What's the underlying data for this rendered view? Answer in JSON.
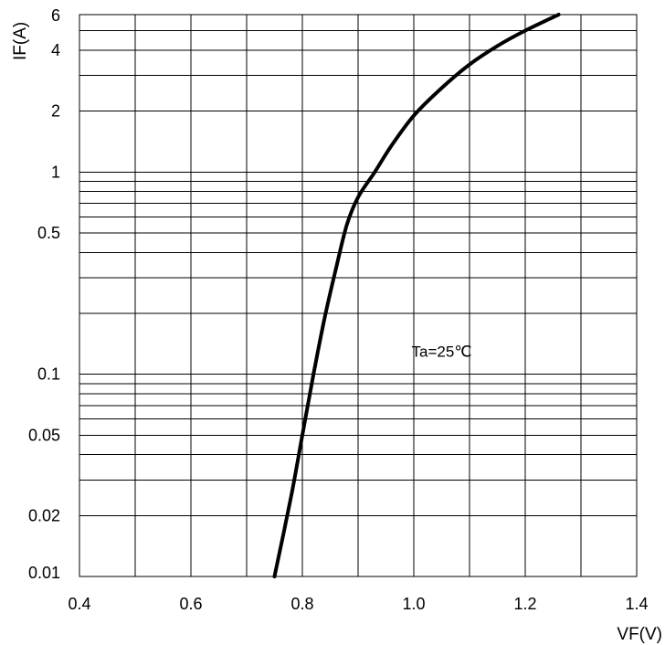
{
  "chart_data": {
    "type": "line",
    "title": "",
    "xlabel": "VF(V)",
    "ylabel": "IF(A)",
    "xlim": [
      0.4,
      1.4
    ],
    "ylim": [
      0.01,
      6
    ],
    "y_scale": "log",
    "grid": true,
    "x_ticks": [
      "0.4",
      "0.6",
      "0.8",
      "1.0",
      "1.2",
      "1.4"
    ],
    "y_ticks": [
      {
        "value": 6,
        "label": "6"
      },
      {
        "value": 4,
        "label": "4"
      },
      {
        "value": 2,
        "label": "2"
      },
      {
        "value": 1,
        "label": "1"
      },
      {
        "value": 0.5,
        "label": "0.5"
      },
      {
        "value": 0.1,
        "label": "0.1"
      },
      {
        "value": 0.05,
        "label": "0.05"
      },
      {
        "value": 0.02,
        "label": "0.02"
      },
      {
        "value": 0.01,
        "label": "0.01"
      }
    ],
    "x_grid": [
      0.4,
      0.5,
      0.6,
      0.7,
      0.8,
      0.9,
      1.0,
      1.1,
      1.2,
      1.3,
      1.4
    ],
    "y_grid": [
      0.01,
      0.02,
      0.03,
      0.04,
      0.05,
      0.06,
      0.07,
      0.08,
      0.09,
      0.1,
      0.2,
      0.3,
      0.4,
      0.5,
      0.6,
      0.7,
      0.8,
      0.9,
      1,
      2,
      3,
      4,
      5,
      6
    ],
    "annotations": [
      {
        "text": "Ta=25℃",
        "x": 1.05,
        "y": 0.13
      }
    ],
    "series": [
      {
        "x": [
          0.75,
          0.78,
          0.8,
          0.82,
          0.84,
          0.86,
          0.88,
          0.9,
          0.93,
          0.96,
          1.0,
          1.05,
          1.1,
          1.15,
          1.2,
          1.26
        ],
        "y": [
          0.01,
          0.025,
          0.05,
          0.1,
          0.19,
          0.33,
          0.55,
          0.75,
          1.0,
          1.35,
          1.9,
          2.6,
          3.4,
          4.2,
          5.0,
          6.0
        ]
      }
    ]
  }
}
